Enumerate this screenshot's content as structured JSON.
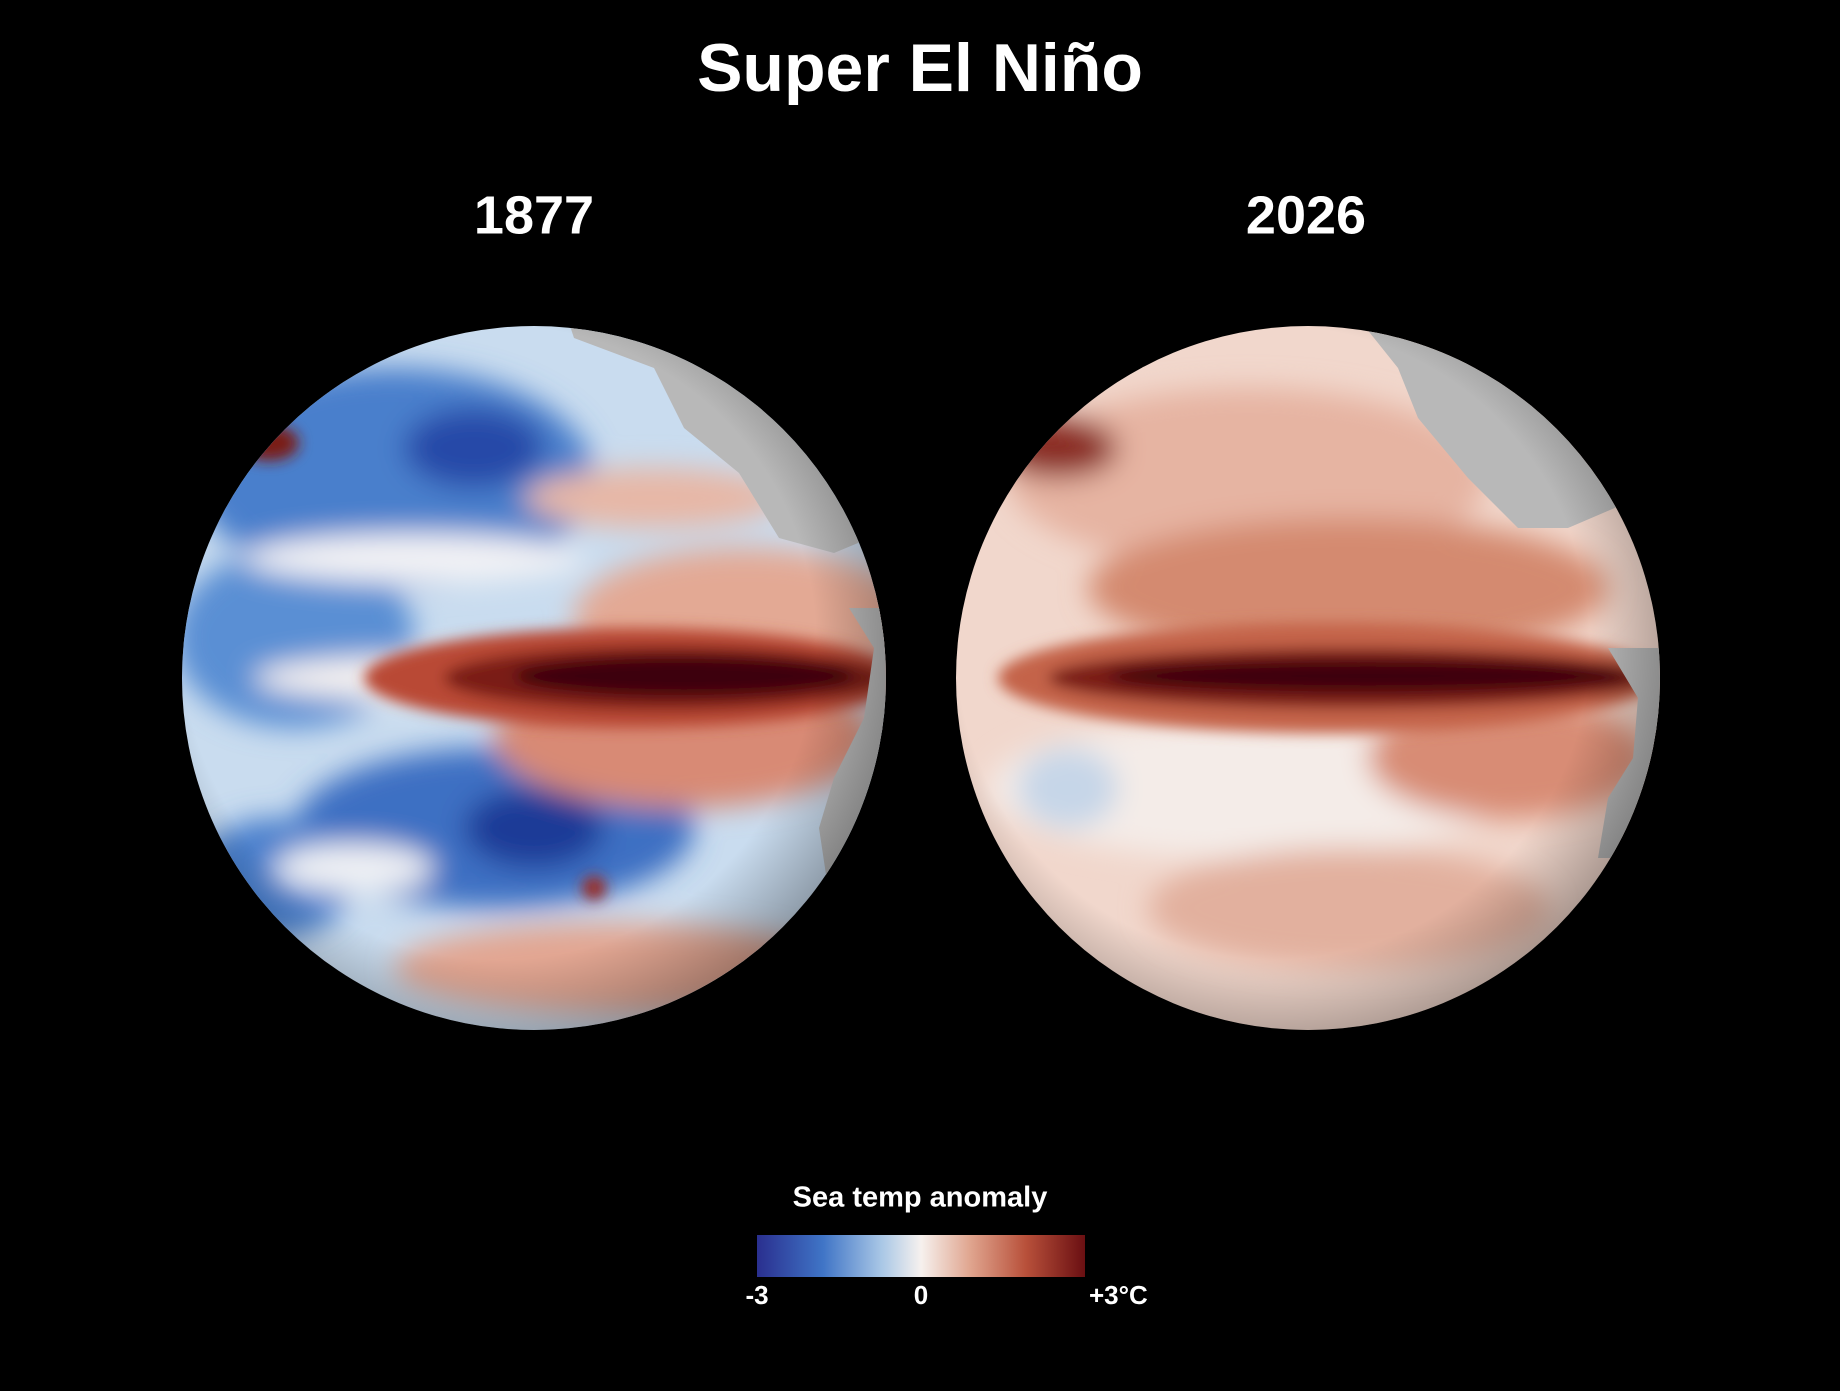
{
  "title": "Super El Niño",
  "maps": [
    {
      "label": "1877"
    },
    {
      "label": "2026"
    }
  ],
  "legend": {
    "title": "Sea temp anomaly",
    "range": [
      -3,
      3
    ],
    "ticks": [
      -3,
      0,
      {
        "value": 3,
        "label": "+3°C"
      }
    ]
  }
}
